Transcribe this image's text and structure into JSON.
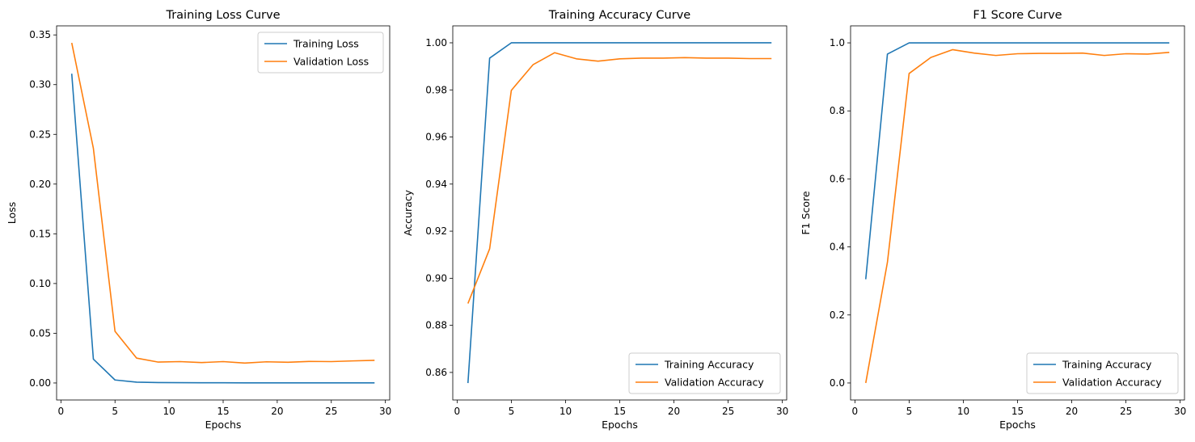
{
  "chart_data": [
    {
      "type": "line",
      "title": "Training Loss Curve",
      "xlabel": "Epochs",
      "ylabel": "Loss",
      "xlim": [
        -0.4,
        30.4
      ],
      "ylim": [
        -0.0171,
        0.3591
      ],
      "xticks": [
        0,
        5,
        10,
        15,
        20,
        25,
        30
      ],
      "yticks": [
        0.0,
        0.05,
        0.1,
        0.15,
        0.2,
        0.25,
        0.3,
        0.35
      ],
      "yticklabels": [
        "0.00",
        "0.05",
        "0.10",
        "0.15",
        "0.20",
        "0.25",
        "0.30",
        "0.35"
      ],
      "legend_position": "top-right",
      "x": [
        1,
        3,
        5,
        7,
        9,
        11,
        13,
        15,
        17,
        19,
        21,
        23,
        25,
        27,
        29
      ],
      "series": [
        {
          "name": "Training Loss",
          "color": "#1f77b4",
          "values": [
            0.311,
            0.024,
            0.003,
            0.0008,
            0.0004,
            0.0003,
            0.0002,
            0.0002,
            0.0001,
            0.0001,
            0.0001,
            0.0001,
            0.0001,
            0.0001,
            0.0001
          ]
        },
        {
          "name": "Validation Loss",
          "color": "#ff7f0e",
          "values": [
            0.342,
            0.236,
            0.052,
            0.025,
            0.021,
            0.0215,
            0.0205,
            0.0215,
            0.02,
            0.0213,
            0.0208,
            0.0217,
            0.0215,
            0.0222,
            0.0228
          ]
        }
      ]
    },
    {
      "type": "line",
      "title": "Training Accuracy Curve",
      "xlabel": "Epochs",
      "ylabel": "Accuracy",
      "xlim": [
        -0.4,
        30.4
      ],
      "ylim": [
        0.8483,
        1.0072
      ],
      "xticks": [
        0,
        5,
        10,
        15,
        20,
        25,
        30
      ],
      "yticks": [
        0.86,
        0.88,
        0.9,
        0.92,
        0.94,
        0.96,
        0.98,
        1.0
      ],
      "yticklabels": [
        "0.86",
        "0.88",
        "0.90",
        "0.92",
        "0.94",
        "0.96",
        "0.98",
        "1.00"
      ],
      "legend_position": "bottom-right",
      "x": [
        1,
        3,
        5,
        7,
        9,
        11,
        13,
        15,
        17,
        19,
        21,
        23,
        25,
        27,
        29
      ],
      "series": [
        {
          "name": "Training Accuracy",
          "color": "#1f77b4",
          "values": [
            0.8555,
            0.9935,
            1.0,
            1.0,
            1.0,
            1.0,
            1.0,
            1.0,
            1.0,
            1.0,
            1.0,
            1.0,
            1.0,
            1.0,
            1.0
          ]
        },
        {
          "name": "Validation Accuracy",
          "color": "#ff7f0e",
          "values": [
            0.8893,
            0.9125,
            0.9798,
            0.9907,
            0.9958,
            0.9932,
            0.9922,
            0.9932,
            0.9935,
            0.9935,
            0.9937,
            0.9935,
            0.9935,
            0.9933,
            0.9933
          ]
        }
      ]
    },
    {
      "type": "line",
      "title": "F1 Score Curve",
      "xlabel": "Epochs",
      "ylabel": "F1 Score",
      "xlim": [
        -0.4,
        30.4
      ],
      "ylim": [
        -0.05,
        1.05
      ],
      "xticks": [
        0,
        5,
        10,
        15,
        20,
        25,
        30
      ],
      "yticks": [
        0.0,
        0.2,
        0.4,
        0.6,
        0.8,
        1.0
      ],
      "yticklabels": [
        "0.0",
        "0.2",
        "0.4",
        "0.6",
        "0.8",
        "1.0"
      ],
      "legend_position": "bottom-right",
      "x": [
        1,
        3,
        5,
        7,
        9,
        11,
        13,
        15,
        17,
        19,
        21,
        23,
        25,
        27,
        29
      ],
      "series": [
        {
          "name": "Training Accuracy",
          "color": "#1f77b4",
          "values": [
            0.305,
            0.967,
            1.0,
            1.0,
            1.0,
            1.0,
            1.0,
            1.0,
            1.0,
            1.0,
            1.0,
            1.0,
            1.0,
            1.0,
            1.0
          ]
        },
        {
          "name": "Validation Accuracy",
          "color": "#ff7f0e",
          "values": [
            0.0,
            0.355,
            0.91,
            0.957,
            0.98,
            0.97,
            0.963,
            0.968,
            0.969,
            0.969,
            0.97,
            0.963,
            0.968,
            0.967,
            0.972
          ]
        }
      ]
    }
  ]
}
